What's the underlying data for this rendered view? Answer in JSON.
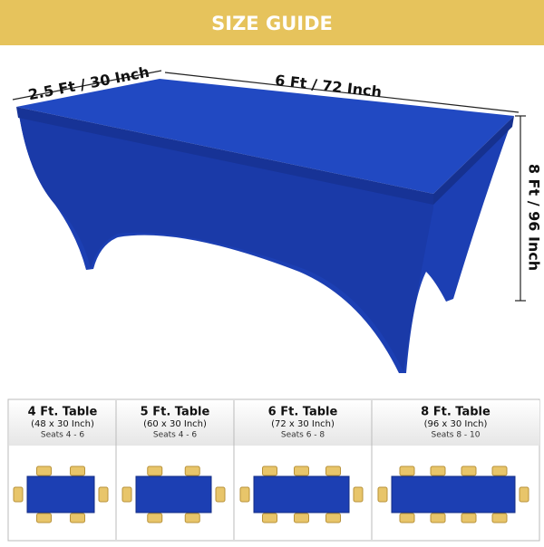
{
  "header": {
    "title": "SIZE GUIDE"
  },
  "dimensions": {
    "width": "2.5 Ft / 30 Inch",
    "length": "6 Ft / 72 Inch",
    "drop": "8 Ft / 96 Inch"
  },
  "tables": [
    {
      "name": "4 Ft. Table",
      "size": "(48 x 30 Inch)",
      "seats": "Seats 4 - 6"
    },
    {
      "name": "5 Ft. Table",
      "size": "(60 x 30 Inch)",
      "seats": "Seats 4 - 6"
    },
    {
      "name": "6 Ft. Table",
      "size": "(72 x 30 Inch)",
      "seats": "Seats 6 - 8"
    },
    {
      "name": "8 Ft. Table",
      "size": "(96 x 30 Inch)",
      "seats": "Seats 8 - 10"
    }
  ]
}
